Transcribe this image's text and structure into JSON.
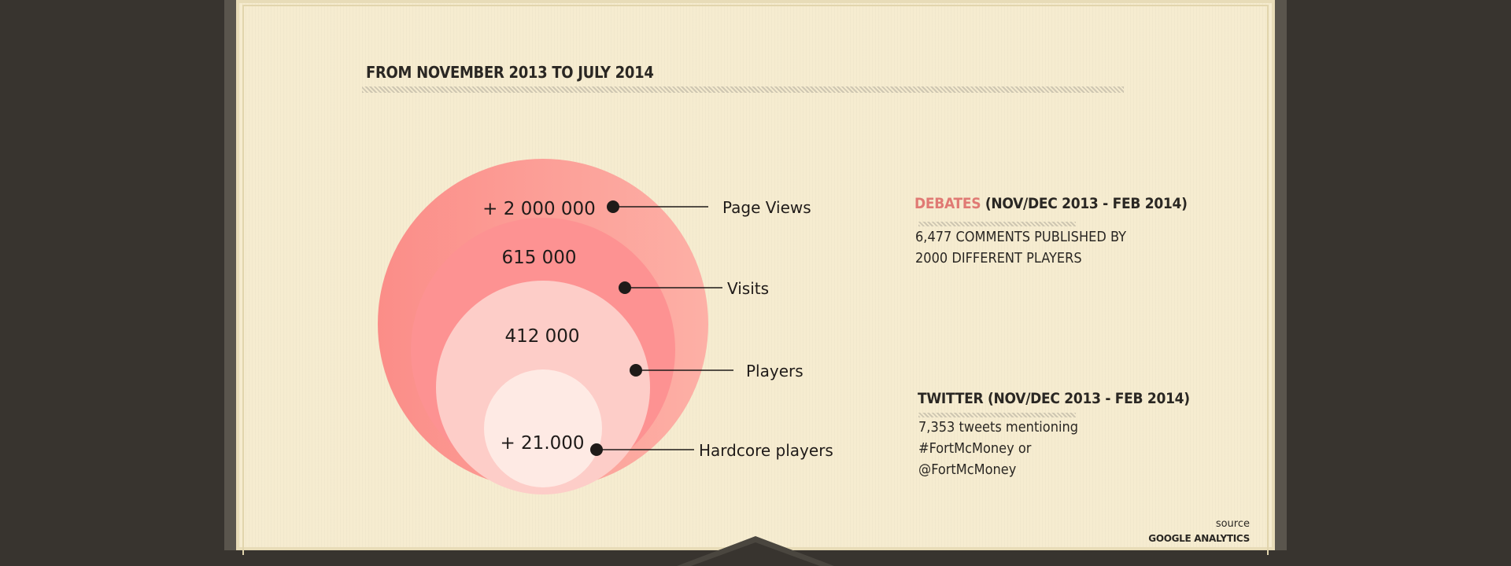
{
  "header": {
    "period_title": "FROM NOVEMBER 2013 TO JULY 2014"
  },
  "chart_data": {
    "type": "bubble",
    "title": "",
    "series": [
      {
        "name": "Page Views",
        "value_label": "+ 2 000 000",
        "value": 2000000
      },
      {
        "name": "Visits",
        "value_label": "615 000",
        "value": 615000
      },
      {
        "name": "Players",
        "value_label": "412 000",
        "value": 412000
      },
      {
        "name": "Hardcore players",
        "value_label": "+ 21.000",
        "value": 21000
      }
    ],
    "colors": [
      "#fca09a",
      "#fd9292",
      "#fdcdc8",
      "#feeae4"
    ]
  },
  "debates": {
    "highlight": "DEBATES",
    "period": "(NOV/DEC 2013 - FEB 2014)",
    "line1": "6,477 COMMENTS PUBLISHED BY",
    "line2": "2000 DIFFERENT PLAYERS",
    "highlight_color": "#e07a74"
  },
  "twitter": {
    "title": "TWITTER (NOV/DEC 2013 - FEB 2014)",
    "line1": "7,353 tweets mentioning",
    "line2": "#FortMcMoney or",
    "line3": "@FortMcMoney"
  },
  "source": {
    "label": "source",
    "name": "GOOGLE ANALYTICS"
  }
}
